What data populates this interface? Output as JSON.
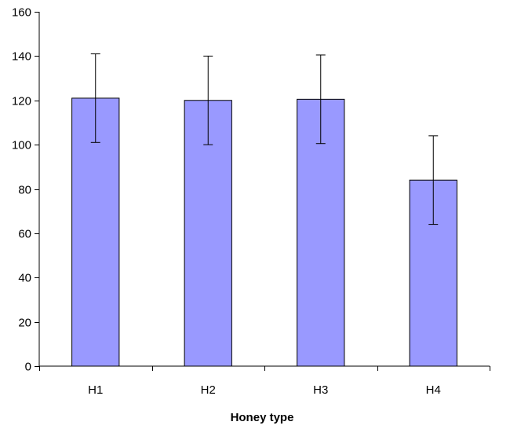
{
  "chart_data": {
    "type": "bar",
    "title": "",
    "xlabel": "Honey type",
    "ylabel": "",
    "categories": [
      "H1",
      "H2",
      "H3",
      "H4"
    ],
    "values": [
      121,
      120,
      120.5,
      84
    ],
    "error": [
      20,
      20,
      20,
      20
    ],
    "ylim": [
      0,
      160
    ],
    "yticks": [
      0,
      20,
      40,
      60,
      80,
      100,
      120,
      140,
      160
    ],
    "grid": false,
    "legend": "none",
    "bar_color": "#9999ff",
    "bar_edge_color": "#000000"
  }
}
